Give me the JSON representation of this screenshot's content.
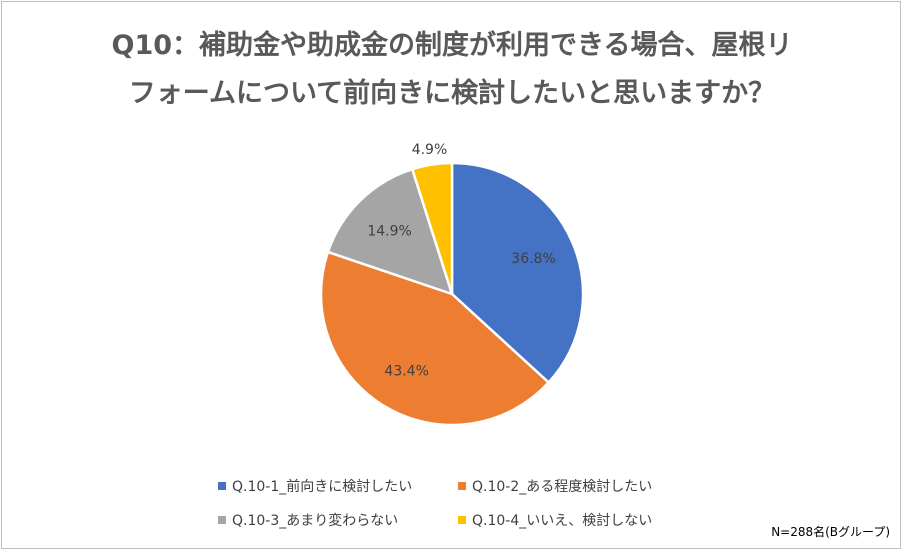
{
  "chart_data": {
    "type": "pie",
    "title_lines": [
      "Q10：補助金や助成金の制度が利用できる場合、屋根リ",
      "フォームについて前向きに検討したいと思いますか？"
    ],
    "slices": [
      {
        "label": "Q.10-1_前向きに検討したい",
        "value": 36.8,
        "display": "36.8%",
        "color": "#4472C4"
      },
      {
        "label": "Q.10-2_ある程度検討したい",
        "value": 43.4,
        "display": "43.4%",
        "color": "#ED7D31"
      },
      {
        "label": "Q.10-3_あまり変わらない",
        "value": 14.9,
        "display": "14.9%",
        "color": "#A5A5A5"
      },
      {
        "label": "Q.10-4_いいえ、検討しない",
        "value": 4.9,
        "display": "4.9%",
        "color": "#FFC000"
      }
    ],
    "legend_position": "bottom",
    "note": "N=288名(Bグループ)"
  }
}
